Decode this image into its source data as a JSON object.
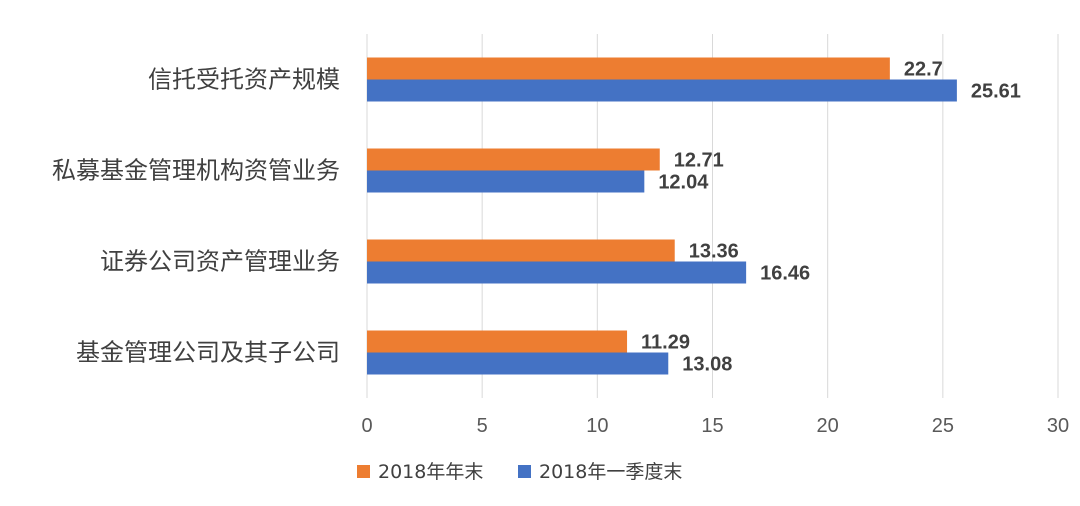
{
  "chart_data": {
    "type": "bar",
    "orientation": "horizontal",
    "categories": [
      "信托受托资产规模",
      "私募基金管理机构资管业务",
      "证券公司资产管理业务",
      "基金管理公司及其子公司"
    ],
    "series": [
      {
        "name": "2018年年末",
        "color": "#ED7D31",
        "values": [
          22.7,
          12.71,
          13.36,
          11.29
        ]
      },
      {
        "name": "2018年一季度末",
        "color": "#4472C4",
        "values": [
          25.61,
          12.04,
          16.46,
          13.08
        ]
      }
    ],
    "xlim": [
      0,
      30
    ],
    "xticks": [
      0,
      5,
      10,
      15,
      20,
      25,
      30
    ],
    "grid": true,
    "legend_position": "bottom"
  }
}
